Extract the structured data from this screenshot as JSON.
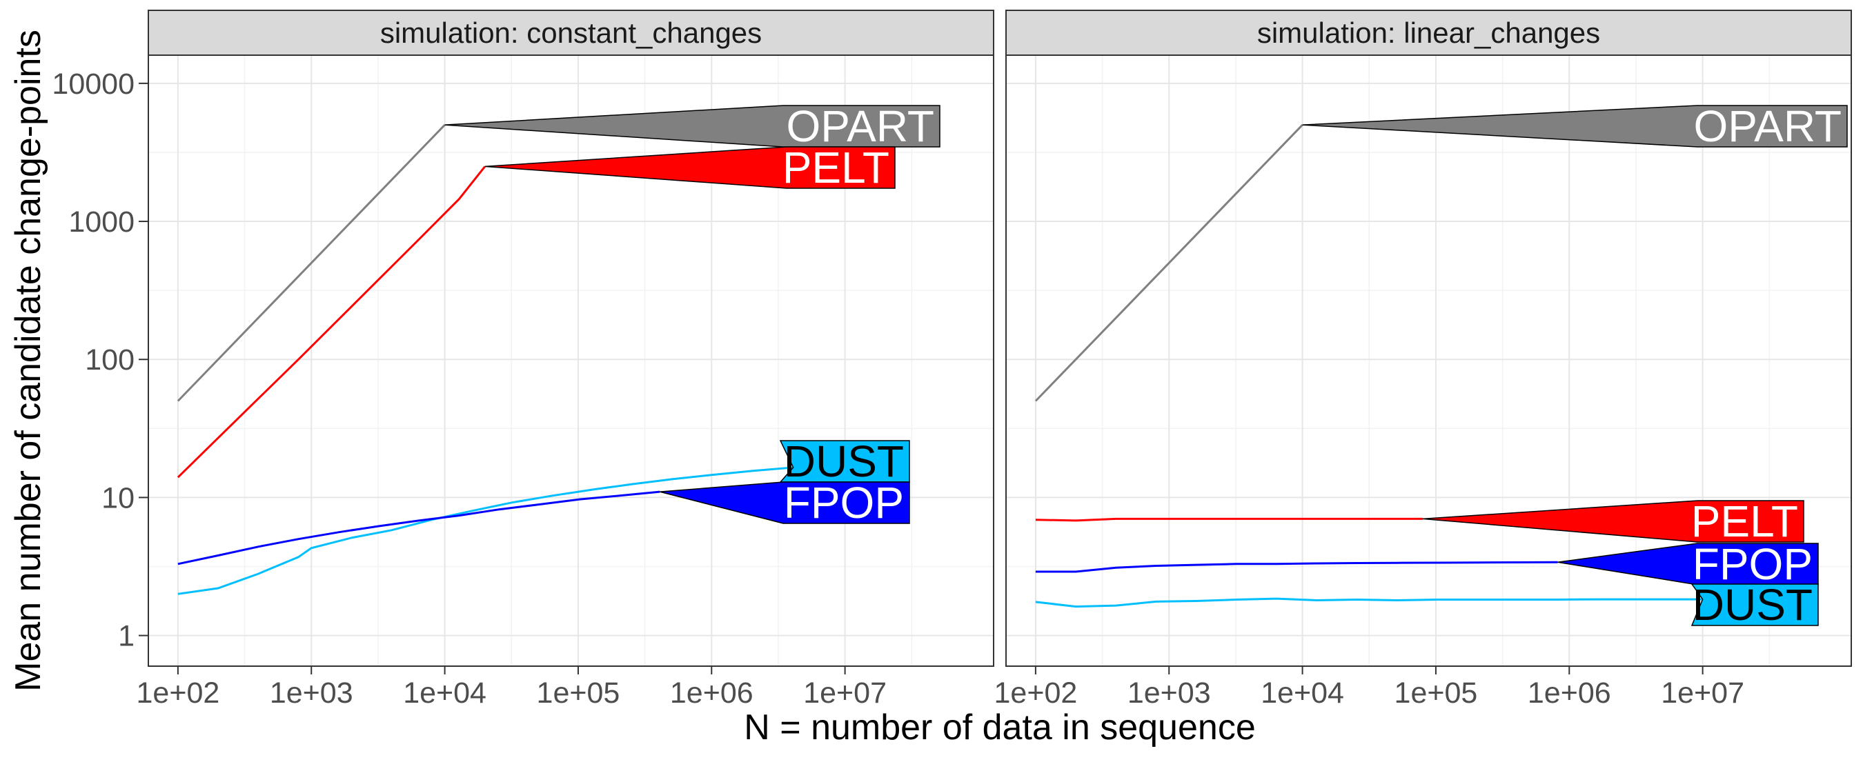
{
  "chart_data": {
    "type": "line",
    "xlabel": "N = number of data in sequence",
    "ylabel": "Mean number of candidate change-points",
    "x_scale": "log10",
    "y_scale": "log10",
    "xlim": [
      60,
      130000000
    ],
    "ylim": [
      0.6,
      16000
    ],
    "x_ticks": [
      100,
      1000,
      10000,
      100000,
      1000000,
      10000000
    ],
    "x_tick_labels": [
      "1e+02",
      "1e+03",
      "1e+04",
      "1e+05",
      "1e+06",
      "1e+07"
    ],
    "y_ticks": [
      1,
      10,
      100,
      1000,
      10000
    ],
    "y_tick_labels": [
      "1",
      "10",
      "100",
      "1000",
      "10000"
    ],
    "grid": true,
    "legend": "none",
    "colors": {
      "OPART": "#808080",
      "PELT": "#ff0000",
      "FPOP": "#0000ff",
      "DUST": "#00bfff"
    },
    "panels": [
      {
        "title": "simulation: constant_changes",
        "series": [
          {
            "name": "OPART",
            "x": [
              100,
              10000
            ],
            "y": [
              50,
              5000
            ],
            "label_y": 5000
          },
          {
            "name": "PELT",
            "x": [
              100,
              200,
              400,
              800,
              1600,
              3200,
              6400,
              12800,
              20000
            ],
            "y": [
              14,
              27,
              52,
              100,
              195,
              380,
              740,
              1450,
              2500
            ],
            "label_y": 2500
          },
          {
            "name": "DUST",
            "x": [
              100,
              200,
              400,
              800,
              1000,
              2000,
              4000,
              8000,
              16000,
              32000,
              64000,
              128000,
              256000,
              512000,
              1024000,
              2048000,
              4096000
            ],
            "y": [
              2,
              2.2,
              2.8,
              3.7,
              4.3,
              5.1,
              5.8,
              6.9,
              8,
              9.2,
              10.3,
              11.4,
              12.5,
              13.6,
              14.6,
              15.6,
              16.5
            ],
            "label_y": 16.5
          },
          {
            "name": "FPOP",
            "x": [
              100,
              200,
              400,
              800,
              1600,
              3200,
              6400,
              12800,
              25600,
              51200,
              102400,
              204800,
              409600
            ],
            "y": [
              3.3,
              3.8,
              4.4,
              5,
              5.6,
              6.2,
              6.8,
              7.4,
              8.2,
              8.9,
              9.7,
              10.3,
              11
            ],
            "label_y": 11
          }
        ]
      },
      {
        "title": "simulation: linear_changes",
        "series": [
          {
            "name": "OPART",
            "x": [
              100,
              10000
            ],
            "y": [
              50,
              5000
            ],
            "label_y": 5000
          },
          {
            "name": "PELT",
            "x": [
              100,
              200,
              400,
              800,
              1600,
              3200,
              6400,
              12800,
              25600,
              51200,
              80000
            ],
            "y": [
              6.9,
              6.8,
              7,
              7,
              7,
              7,
              7,
              7,
              7,
              7,
              7
            ],
            "label_y": 7
          },
          {
            "name": "FPOP",
            "x": [
              100,
              200,
              400,
              800,
              1600,
              3200,
              6400,
              12800,
              25600,
              51200,
              102400,
              204800,
              409600,
              819200
            ],
            "y": [
              2.9,
              2.9,
              3.1,
              3.2,
              3.25,
              3.3,
              3.3,
              3.33,
              3.35,
              3.36,
              3.37,
              3.38,
              3.39,
              3.4
            ],
            "label_y": 3.4
          },
          {
            "name": "DUST",
            "x": [
              100,
              200,
              400,
              800,
              1600,
              3200,
              6400,
              12800,
              25600,
              51200,
              102400,
              204800,
              409600,
              819200,
              1638400,
              3276800,
              6553600,
              10000000
            ],
            "y": [
              1.75,
              1.62,
              1.65,
              1.76,
              1.78,
              1.82,
              1.85,
              1.8,
              1.82,
              1.8,
              1.82,
              1.82,
              1.82,
              1.82,
              1.83,
              1.83,
              1.83,
              1.83
            ],
            "label_y": 1.83
          }
        ]
      }
    ]
  }
}
